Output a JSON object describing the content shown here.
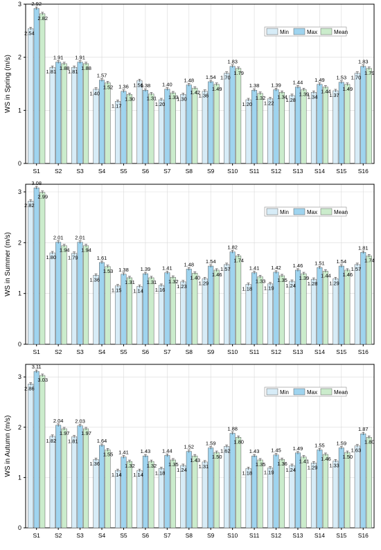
{
  "colors": {
    "min": "#d7ecf7",
    "max": "#9fd4ef",
    "mean": "#cbeccc",
    "grid": "#d9d9d9",
    "axis": "#000000"
  },
  "chart_data": [
    {
      "type": "bar",
      "ylabel": "WS in Spring (m/s)",
      "ylim": [
        0,
        3
      ],
      "yticks": [
        "0",
        "1",
        "2",
        "3"
      ],
      "grid": true,
      "legend_position": "top-right",
      "categories": [
        "S1",
        "S2",
        "S3",
        "S4",
        "S5",
        "S6",
        "S7",
        "S8",
        "S9",
        "S10",
        "S11",
        "S12",
        "S13",
        "S14",
        "S15",
        "S16"
      ],
      "series": [
        {
          "name": "Min",
          "values": [
            2.54,
            1.81,
            1.81,
            1.4,
            1.17,
            1.56,
            1.2,
            1.3,
            1.36,
            1.7,
            1.2,
            1.22,
            1.28,
            1.34,
            1.37,
            1.7
          ]
        },
        {
          "name": "Max",
          "values": [
            2.92,
            1.91,
            1.91,
            1.57,
            1.36,
            1.38,
            1.4,
            1.48,
            1.54,
            1.83,
            1.38,
            1.39,
            1.44,
            1.49,
            1.53,
            1.83
          ]
        },
        {
          "name": "Mean",
          "values": [
            2.82,
            1.88,
            1.88,
            1.52,
            1.3,
            1.31,
            1.33,
            1.42,
            1.49,
            1.79,
            1.32,
            1.34,
            1.39,
            1.44,
            1.49,
            1.79
          ]
        }
      ]
    },
    {
      "type": "bar",
      "ylabel": "WS in Summer (m/s)",
      "ylim": [
        0,
        3.15
      ],
      "yticks": [
        "0",
        "1",
        "2",
        "3"
      ],
      "grid": true,
      "legend_position": "top-right",
      "categories": [
        "S1",
        "S2",
        "S3",
        "S4",
        "S5",
        "S6",
        "S7",
        "S8",
        "S9",
        "S10",
        "S11",
        "S12",
        "S13",
        "S14",
        "S15",
        "S16"
      ],
      "series": [
        {
          "name": "Min",
          "values": [
            2.82,
            1.8,
            1.79,
            1.36,
            1.15,
            1.14,
            1.16,
            1.23,
            1.29,
            1.57,
            1.18,
            1.19,
            1.24,
            1.28,
            1.29,
            1.57
          ]
        },
        {
          "name": "Max",
          "values": [
            3.08,
            2.01,
            2.01,
            1.61,
            1.38,
            1.39,
            1.41,
            1.48,
            1.54,
            1.82,
            1.41,
            1.42,
            1.46,
            1.51,
            1.54,
            1.81
          ]
        },
        {
          "name": "Mean",
          "values": [
            2.99,
            1.94,
            1.94,
            1.53,
            1.31,
            1.31,
            1.32,
            1.4,
            1.46,
            1.74,
            1.33,
            1.35,
            1.39,
            1.44,
            1.46,
            1.74
          ]
        }
      ]
    },
    {
      "type": "bar",
      "ylabel": "WS in Autumn (m/s)",
      "ylim": [
        0,
        3.25
      ],
      "yticks": [
        "0",
        "1",
        "2",
        "3"
      ],
      "grid": true,
      "legend_position": "top-right",
      "categories": [
        "S1",
        "S2",
        "S3",
        "S4",
        "S5",
        "S6",
        "S7",
        "S8",
        "S9",
        "S10",
        "S11",
        "S12",
        "S13",
        "S14",
        "S15",
        "S16"
      ],
      "series": [
        {
          "name": "Min",
          "values": [
            2.86,
            1.82,
            1.81,
            1.36,
            1.14,
            1.14,
            1.18,
            1.24,
            1.31,
            1.62,
            1.18,
            1.19,
            1.24,
            1.29,
            1.33,
            1.63
          ]
        },
        {
          "name": "Max",
          "values": [
            3.11,
            2.04,
            2.03,
            1.64,
            1.41,
            1.43,
            1.44,
            1.52,
            1.59,
            1.88,
            1.43,
            1.45,
            1.49,
            1.55,
            1.59,
            1.87
          ]
        },
        {
          "name": "Mean",
          "values": [
            3.03,
            1.97,
            1.97,
            1.55,
            1.32,
            1.32,
            1.35,
            1.43,
            1.5,
            1.8,
            1.35,
            1.36,
            1.41,
            1.46,
            1.5,
            1.8
          ]
        }
      ]
    }
  ]
}
